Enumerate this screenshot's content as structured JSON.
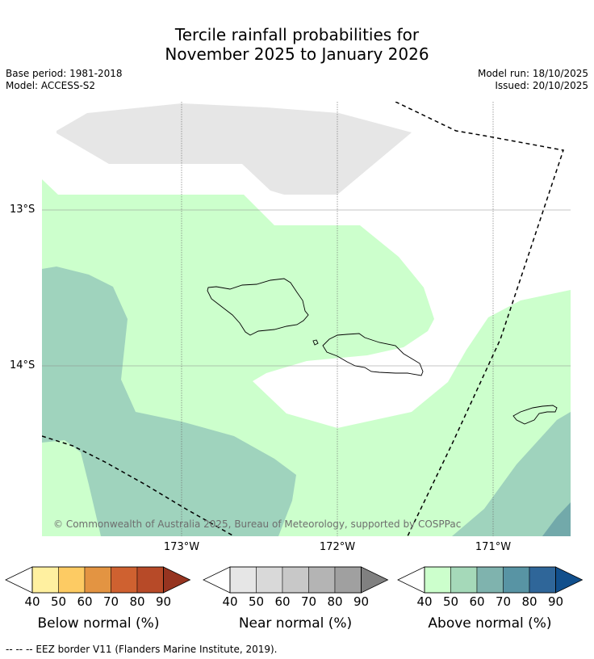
{
  "title_line1": "Tercile rainfall probabilities for",
  "title_line2": "November 2025 to January 2026",
  "meta": {
    "base_period": "Base period: 1981-2018",
    "model": "Model: ACCESS-S2",
    "model_run": "Model run: 18/10/2025",
    "issued": "Issued: 20/10/2025"
  },
  "axes": {
    "lat_labels": [
      "13°S",
      "14°S"
    ],
    "lon_labels": [
      "173°W",
      "172°W",
      "171°W"
    ]
  },
  "copyright": "© Commonwealth of Australia 2025, Bureau of Meteorology, supported by COSPPac",
  "legends": [
    {
      "label": "Below normal (%)",
      "ticks": [
        "40",
        "50",
        "60",
        "70",
        "80",
        "90"
      ],
      "colors": [
        "#fff0a0",
        "#fdcb63",
        "#e39442",
        "#cf6130",
        "#b74a28",
        "#963420"
      ]
    },
    {
      "label": "Near normal (%)",
      "ticks": [
        "40",
        "50",
        "60",
        "70",
        "80",
        "90"
      ],
      "colors": [
        "#e6e6e6",
        "#d9d9d9",
        "#c8c8c8",
        "#b4b4b4",
        "#a0a0a0",
        "#808080"
      ]
    },
    {
      "label": "Above normal (%)",
      "ticks": [
        "40",
        "50",
        "60",
        "70",
        "80",
        "90"
      ],
      "colors": [
        "#ccffcc",
        "#a5d9b9",
        "#7fb3ae",
        "#5894a4",
        "#2f6699",
        "#114f8c"
      ]
    }
  ],
  "footer": "--  --  -- EEZ border V11 (Flanders Marine Institute, 2019).",
  "colors": {
    "near_normal_40": "#e6e6e6",
    "above_normal_40": "#ccffcc",
    "above_normal_50": "#9fd3bd",
    "above_normal_60": "#72a9aa"
  }
}
